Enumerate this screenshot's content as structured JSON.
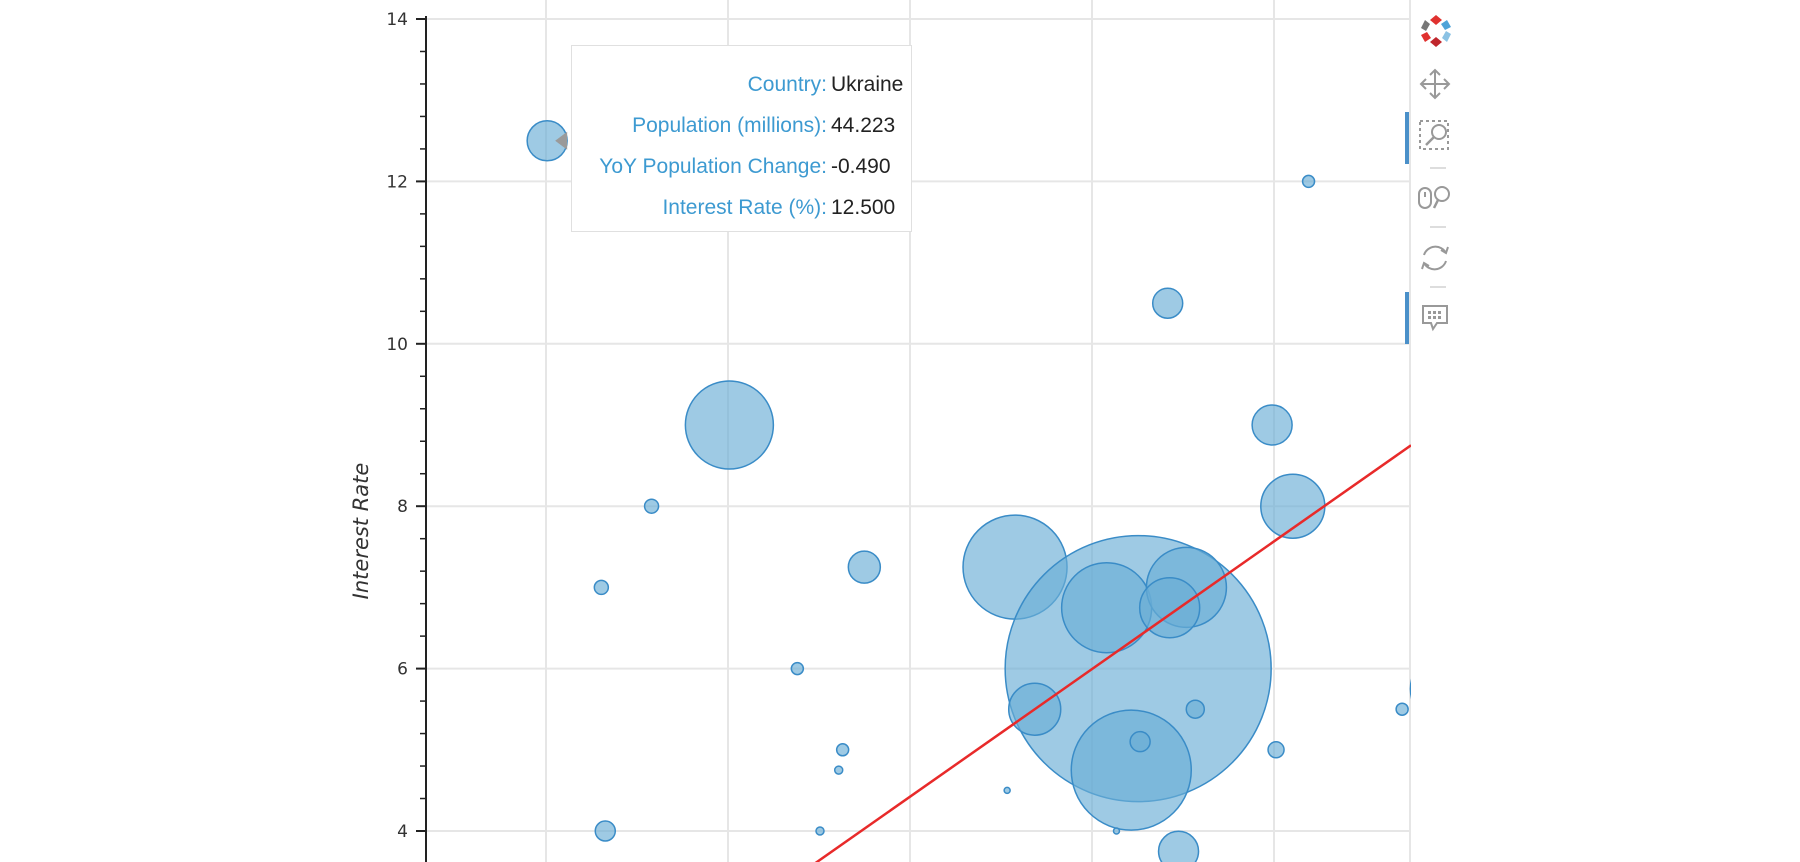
{
  "chart_data": {
    "type": "scatter",
    "xlabel": "",
    "ylabel": "Interest Rate",
    "ylim": [
      3.6,
      14.1
    ],
    "xlim": [
      0,
      1
    ],
    "y_ticks": [
      4,
      6,
      8,
      10,
      12,
      14
    ],
    "grid": true,
    "point_color": "#6aaed6",
    "point_stroke": "#3a8cc7",
    "regression_line": {
      "color": "#e82a2a",
      "points": [
        [
          0.383,
          3.5
        ],
        [
          1.0,
          8.75
        ]
      ]
    },
    "points": [
      {
        "x": 0.123,
        "y": 12.5,
        "r": 20
      },
      {
        "x": 0.896,
        "y": 12.0,
        "r": 6
      },
      {
        "x": 0.753,
        "y": 10.5,
        "r": 15
      },
      {
        "x": 0.308,
        "y": 9.0,
        "r": 44
      },
      {
        "x": 0.859,
        "y": 9.0,
        "r": 20
      },
      {
        "x": 0.229,
        "y": 8.0,
        "r": 7
      },
      {
        "x": 0.88,
        "y": 8.0,
        "r": 32
      },
      {
        "x": 0.178,
        "y": 7.0,
        "r": 7
      },
      {
        "x": 0.445,
        "y": 7.25,
        "r": 16
      },
      {
        "x": 0.598,
        "y": 7.25,
        "r": 52
      },
      {
        "x": 0.723,
        "y": 6.0,
        "r": 133
      },
      {
        "x": 0.691,
        "y": 6.75,
        "r": 45
      },
      {
        "x": 0.772,
        "y": 7.0,
        "r": 40
      },
      {
        "x": 0.755,
        "y": 6.75,
        "r": 30
      },
      {
        "x": 0.618,
        "y": 5.5,
        "r": 26
      },
      {
        "x": 0.781,
        "y": 5.5,
        "r": 9
      },
      {
        "x": 0.377,
        "y": 6.0,
        "r": 6
      },
      {
        "x": 0.423,
        "y": 5.0,
        "r": 6
      },
      {
        "x": 0.419,
        "y": 4.75,
        "r": 4
      },
      {
        "x": 0.716,
        "y": 4.75,
        "r": 60
      },
      {
        "x": 0.725,
        "y": 5.1,
        "r": 10
      },
      {
        "x": 0.863,
        "y": 5.0,
        "r": 8
      },
      {
        "x": 0.991,
        "y": 5.5,
        "r": 6
      },
      {
        "x": 1.04,
        "y": 5.75,
        "r": 40
      },
      {
        "x": 0.59,
        "y": 4.5,
        "r": 3
      },
      {
        "x": 0.182,
        "y": 4.0,
        "r": 10
      },
      {
        "x": 0.4,
        "y": 4.0,
        "r": 4
      },
      {
        "x": 0.701,
        "y": 4.0,
        "r": 3
      },
      {
        "x": 0.764,
        "y": 3.75,
        "r": 20
      }
    ]
  },
  "tooltip": {
    "rows": [
      {
        "key": "Country:",
        "value": "Ukraine"
      },
      {
        "key": "Population (millions):",
        "value": "44.223"
      },
      {
        "key": "YoY Population Change:",
        "value": "-0.490"
      },
      {
        "key": "Interest Rate (%):",
        "value": "12.500"
      }
    ]
  },
  "toolbar": {
    "logo": "bokeh-logo",
    "tools": [
      {
        "name": "pan-tool",
        "icon": "move-arrows-icon",
        "active": false
      },
      {
        "name": "box-zoom-tool",
        "icon": "box-zoom-icon",
        "active": true
      },
      {
        "name": "wheel-zoom-tool",
        "icon": "wheel-zoom-icon",
        "active": false
      },
      {
        "name": "reset-tool",
        "icon": "reset-icon",
        "active": false
      },
      {
        "name": "hover-tool",
        "icon": "hover-icon",
        "active": true
      }
    ]
  }
}
